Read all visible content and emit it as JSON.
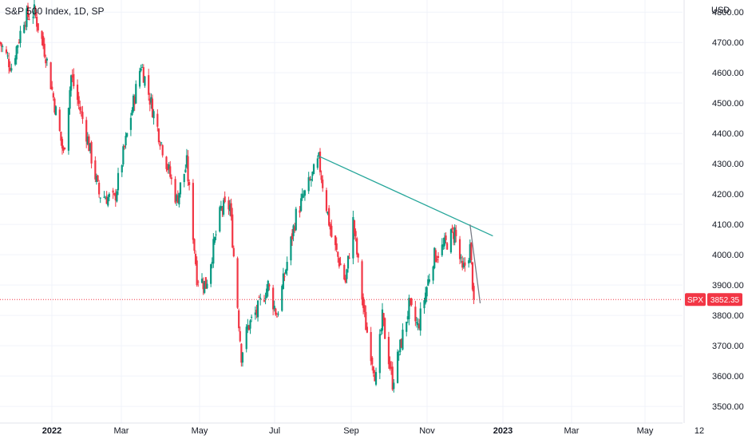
{
  "header": {
    "symbol_title": "S&P 500 Index, 1D, SP",
    "currency": "USD"
  },
  "price_tag": {
    "label": "SPX",
    "value": "3852.35",
    "color": "#f23645"
  },
  "colors": {
    "up": "#089981",
    "down": "#f23645",
    "trendline": "#26a69a",
    "steep_line": "#787b86",
    "grid": "#f0f3fa",
    "axis_text": "#131722"
  },
  "chart_data": {
    "type": "candlestick",
    "title": "S&P 500 Index, 1D, SP",
    "x_axis": {
      "tick_labels": [
        "2022",
        "Mar",
        "May",
        "Jul",
        "Sep",
        "Nov",
        "2023",
        "Mar",
        "May",
        "12"
      ],
      "range": [
        "2021-12-08",
        "2023-06-14"
      ]
    },
    "y_axis": {
      "tick_labels": [
        "3500.00",
        "3600.00",
        "3700.00",
        "3800.00",
        "3900.00",
        "4000.00",
        "4100.00",
        "4200.00",
        "4300.00",
        "4400.00",
        "4500.00",
        "4600.00",
        "4700.00",
        "4800.00"
      ],
      "ylim": [
        3445,
        4840
      ],
      "currency": "USD",
      "position": "right"
    },
    "grid": true,
    "last_price": 3852.35,
    "close_path": [
      [
        "2021-12-08",
        4700
      ],
      [
        "2021-12-17",
        4620
      ],
      [
        "2021-12-27",
        4780
      ],
      [
        "2022-01-04",
        4800
      ],
      [
        "2022-01-13",
        4660
      ],
      [
        "2022-01-27",
        4330
      ],
      [
        "2022-02-02",
        4590
      ],
      [
        "2022-02-14",
        4400
      ],
      [
        "2022-02-24",
        4200
      ],
      [
        "2022-03-08",
        4180
      ],
      [
        "2022-03-29",
        4630
      ],
      [
        "2022-04-12",
        4400
      ],
      [
        "2022-04-26",
        4180
      ],
      [
        "2022-05-04",
        4300
      ],
      [
        "2022-05-12",
        3930
      ],
      [
        "2022-05-19",
        3900
      ],
      [
        "2022-05-31",
        4150
      ],
      [
        "2022-06-07",
        4160
      ],
      [
        "2022-06-16",
        3670
      ],
      [
        "2022-06-21",
        3760
      ],
      [
        "2022-06-29",
        3820
      ],
      [
        "2022-07-07",
        3900
      ],
      [
        "2022-07-14",
        3800
      ],
      [
        "2022-07-29",
        4130
      ],
      [
        "2022-08-16",
        4310
      ],
      [
        "2022-08-26",
        4060
      ],
      [
        "2022-09-06",
        3910
      ],
      [
        "2022-09-12",
        4110
      ],
      [
        "2022-09-21",
        3790
      ],
      [
        "2022-09-30",
        3590
      ],
      [
        "2022-10-05",
        3790
      ],
      [
        "2022-10-13",
        3580
      ],
      [
        "2022-10-26",
        3830
      ],
      [
        "2022-11-02",
        3760
      ],
      [
        "2022-11-14",
        3990
      ],
      [
        "2022-11-23",
        4030
      ],
      [
        "2022-12-01",
        4080
      ],
      [
        "2022-12-07",
        3940
      ],
      [
        "2022-12-13",
        4020
      ],
      [
        "2022-12-16",
        3852.35
      ]
    ],
    "trendlines": [
      {
        "from": [
          "2022-08-16",
          4325
        ],
        "to": [
          "2022-12-31",
          4062
        ]
      },
      {
        "from": [
          "2022-12-13",
          4100
        ],
        "to": [
          "2022-12-21",
          3840
        ]
      }
    ]
  }
}
